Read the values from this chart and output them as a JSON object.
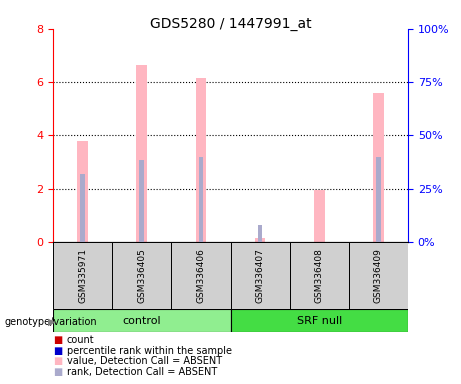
{
  "title": "GDS5280 / 1447991_at",
  "samples": [
    "GSM335971",
    "GSM336405",
    "GSM336406",
    "GSM336407",
    "GSM336408",
    "GSM336409"
  ],
  "value_absent": [
    3.8,
    6.65,
    6.15,
    0.15,
    1.95,
    5.6
  ],
  "rank_absent_pct": [
    32.0,
    38.5,
    40.0,
    8.0,
    null,
    40.0
  ],
  "ylim_left": [
    0,
    8
  ],
  "ylim_right": [
    0,
    100
  ],
  "yticks_left": [
    0,
    2,
    4,
    6,
    8
  ],
  "yticks_right": [
    0,
    25,
    50,
    75,
    100
  ],
  "ytick_labels_right": [
    "0%",
    "25%",
    "50%",
    "75%",
    "100%"
  ],
  "color_value_absent": "#FFB6C1",
  "color_rank_absent": "#AAAACC",
  "color_count": "#CC0000",
  "color_percentile": "#0000CC",
  "bar_width": 0.18,
  "rank_bar_width": 0.08,
  "sample_box_color": "#CCCCCC",
  "control_color": "#90EE90",
  "srf_color": "#44DD44",
  "grid_dotted_ticks": [
    2,
    4,
    6
  ],
  "legend_items": [
    [
      "#CC0000",
      "count"
    ],
    [
      "#0000CC",
      "percentile rank within the sample"
    ],
    [
      "#FFB6C1",
      "value, Detection Call = ABSENT"
    ],
    [
      "#AAAACC",
      "rank, Detection Call = ABSENT"
    ]
  ]
}
